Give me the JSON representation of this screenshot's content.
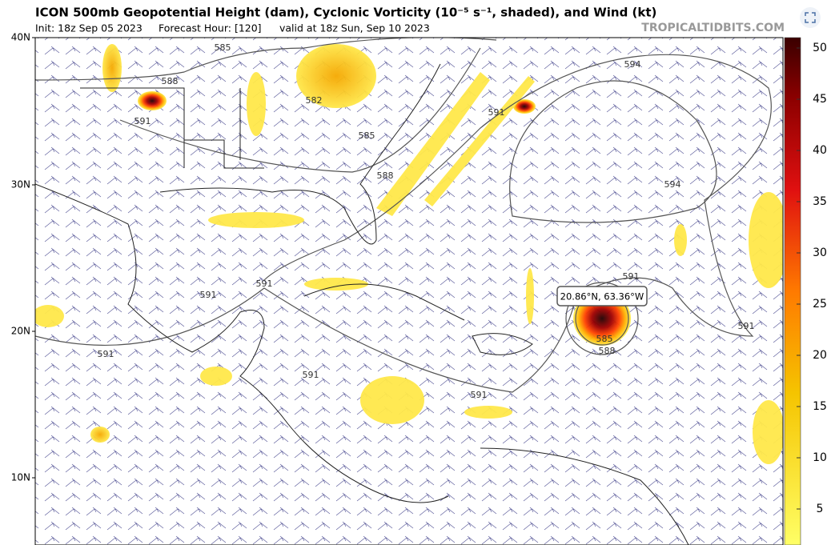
{
  "header": {
    "title": "ICON 500mb Geopotential Height (dam), Cyclonic Vorticity (10⁻⁵ s⁻¹, shaded), and Wind (kt)",
    "init": "Init: 18z Sep 05 2023",
    "forecast_hour": "Forecast Hour: [120]",
    "valid": "valid at 18z Sun, Sep 10 2023",
    "watermark": "TROPICALTIDBITS.COM"
  },
  "map": {
    "latitude_labels": [
      "40N",
      "30N",
      "20N",
      "10N"
    ],
    "contour_labels": [
      585,
      588,
      591,
      582,
      585,
      588,
      591,
      594,
      594,
      591,
      591,
      591,
      591,
      591,
      591,
      591,
      585,
      588
    ],
    "tooltip": "20.86°N, 63.36°W"
  },
  "colorbar": {
    "ticks": [
      5,
      10,
      15,
      20,
      25,
      30,
      35,
      40,
      45,
      50
    ]
  }
}
